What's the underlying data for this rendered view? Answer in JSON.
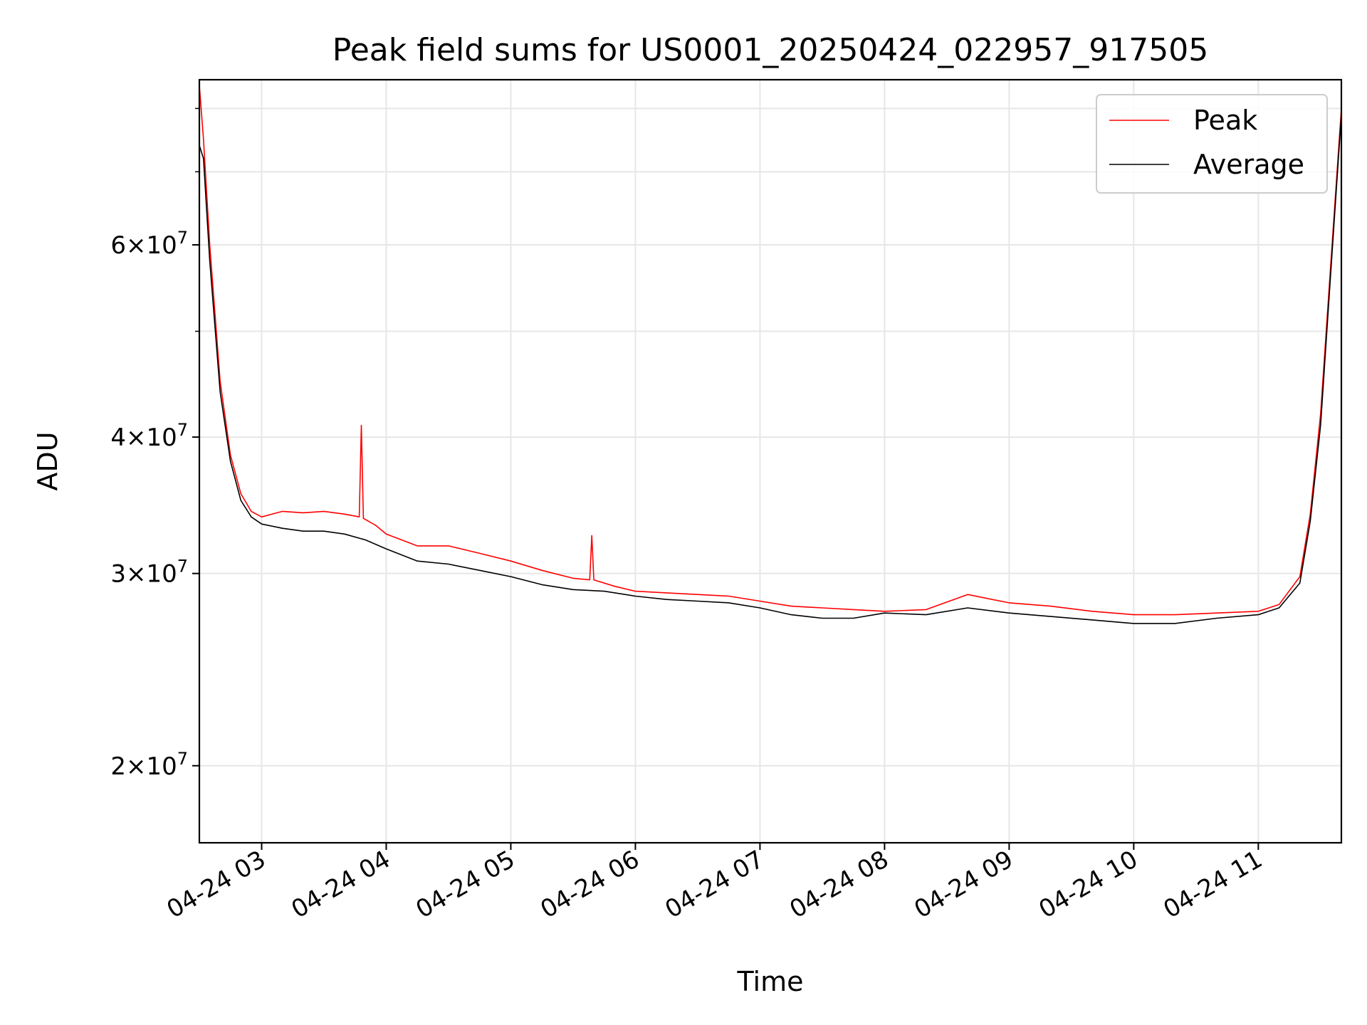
{
  "chart_data": {
    "type": "line",
    "title": "Peak field sums for US0001_20250424_022957_917505",
    "xlabel": "Time",
    "ylabel": "ADU",
    "yscale": "log",
    "ylim": [
      17000000,
      85000000
    ],
    "xlim": [
      "2025-04-24 02:30",
      "2025-04-24 11:40"
    ],
    "x_ticks": [
      "2025-04-24 03:00",
      "2025-04-24 04:00",
      "2025-04-24 05:00",
      "2025-04-24 06:00",
      "2025-04-24 07:00",
      "2025-04-24 08:00",
      "2025-04-24 09:00",
      "2025-04-24 10:00",
      "2025-04-24 11:00"
    ],
    "x_tick_labels": [
      "04-24 03",
      "04-24 04",
      "04-24 05",
      "04-24 06",
      "04-24 07",
      "04-24 08",
      "04-24 09",
      "04-24 10",
      "04-24 11"
    ],
    "y_ticks": [
      {
        "value": 20000000,
        "mantissa": "2",
        "base": "10",
        "exp": "7"
      },
      {
        "value": 30000000,
        "mantissa": "3",
        "base": "10",
        "exp": "7"
      },
      {
        "value": 40000000,
        "mantissa": "4",
        "base": "10",
        "exp": "7"
      },
      {
        "value": 60000000,
        "mantissa": "6",
        "base": "10",
        "exp": "7"
      }
    ],
    "y_minor_ticks": [
      50000000,
      70000000,
      80000000
    ],
    "grid": true,
    "legend_position": "top-right",
    "series": [
      {
        "name": "Peak",
        "color": "#ff0000",
        "x": [
          "2025-04-24 02:30",
          "2025-04-24 02:32",
          "2025-04-24 02:35",
          "2025-04-24 02:40",
          "2025-04-24 02:45",
          "2025-04-24 02:50",
          "2025-04-24 02:55",
          "2025-04-24 03:00",
          "2025-04-24 03:10",
          "2025-04-24 03:20",
          "2025-04-24 03:30",
          "2025-04-24 03:40",
          "2025-04-24 03:47",
          "2025-04-24 03:48",
          "2025-04-24 03:49",
          "2025-04-24 03:55",
          "2025-04-24 04:00",
          "2025-04-24 04:15",
          "2025-04-24 04:30",
          "2025-04-24 04:45",
          "2025-04-24 05:00",
          "2025-04-24 05:15",
          "2025-04-24 05:30",
          "2025-04-24 05:38",
          "2025-04-24 05:39",
          "2025-04-24 05:40",
          "2025-04-24 05:50",
          "2025-04-24 06:00",
          "2025-04-24 06:15",
          "2025-04-24 06:30",
          "2025-04-24 06:45",
          "2025-04-24 07:00",
          "2025-04-24 07:15",
          "2025-04-24 07:30",
          "2025-04-24 07:45",
          "2025-04-24 08:00",
          "2025-04-24 08:20",
          "2025-04-24 08:40",
          "2025-04-24 09:00",
          "2025-04-24 09:20",
          "2025-04-24 09:40",
          "2025-04-24 10:00",
          "2025-04-24 10:20",
          "2025-04-24 10:40",
          "2025-04-24 11:00",
          "2025-04-24 11:10",
          "2025-04-24 11:20",
          "2025-04-24 11:25",
          "2025-04-24 11:30",
          "2025-04-24 11:35",
          "2025-04-24 11:40"
        ],
        "values": [
          84000000,
          75000000,
          60000000,
          45000000,
          38500000,
          35500000,
          34200000,
          33800000,
          34200000,
          34100000,
          34200000,
          34000000,
          33800000,
          41000000,
          33700000,
          33200000,
          32600000,
          31800000,
          31800000,
          31300000,
          30800000,
          30200000,
          29700000,
          29600000,
          32500000,
          29600000,
          29200000,
          28900000,
          28800000,
          28700000,
          28600000,
          28300000,
          28000000,
          27900000,
          27800000,
          27700000,
          27800000,
          28700000,
          28200000,
          28000000,
          27700000,
          27500000,
          27500000,
          27600000,
          27700000,
          28100000,
          29800000,
          34000000,
          42000000,
          58000000,
          80000000
        ]
      },
      {
        "name": "Average",
        "color": "#000000",
        "x": [
          "2025-04-24 02:30",
          "2025-04-24 02:32",
          "2025-04-24 02:35",
          "2025-04-24 02:40",
          "2025-04-24 02:45",
          "2025-04-24 02:50",
          "2025-04-24 02:55",
          "2025-04-24 03:00",
          "2025-04-24 03:10",
          "2025-04-24 03:20",
          "2025-04-24 03:30",
          "2025-04-24 03:40",
          "2025-04-24 03:50",
          "2025-04-24 04:00",
          "2025-04-24 04:15",
          "2025-04-24 04:30",
          "2025-04-24 04:45",
          "2025-04-24 05:00",
          "2025-04-24 05:15",
          "2025-04-24 05:30",
          "2025-04-24 05:45",
          "2025-04-24 06:00",
          "2025-04-24 06:15",
          "2025-04-24 06:30",
          "2025-04-24 06:45",
          "2025-04-24 07:00",
          "2025-04-24 07:15",
          "2025-04-24 07:30",
          "2025-04-24 07:45",
          "2025-04-24 08:00",
          "2025-04-24 08:20",
          "2025-04-24 08:40",
          "2025-04-24 09:00",
          "2025-04-24 09:20",
          "2025-04-24 09:40",
          "2025-04-24 10:00",
          "2025-04-24 10:20",
          "2025-04-24 10:40",
          "2025-04-24 11:00",
          "2025-04-24 11:10",
          "2025-04-24 11:20",
          "2025-04-24 11:25",
          "2025-04-24 11:30",
          "2025-04-24 11:35",
          "2025-04-24 11:40"
        ],
        "values": [
          74000000,
          72000000,
          58000000,
          44000000,
          38000000,
          35000000,
          33800000,
          33300000,
          33000000,
          32800000,
          32800000,
          32600000,
          32200000,
          31600000,
          30800000,
          30600000,
          30200000,
          29800000,
          29300000,
          29000000,
          28900000,
          28600000,
          28400000,
          28300000,
          28200000,
          27900000,
          27500000,
          27300000,
          27300000,
          27600000,
          27500000,
          27900000,
          27600000,
          27400000,
          27200000,
          27000000,
          27000000,
          27300000,
          27500000,
          27900000,
          29400000,
          33500000,
          41000000,
          57000000,
          79000000
        ]
      }
    ]
  }
}
